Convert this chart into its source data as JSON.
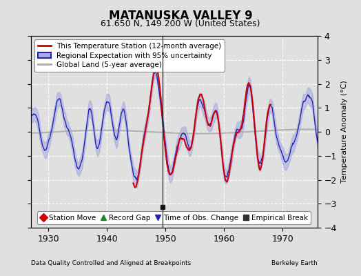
{
  "title": "MATANUSKA VALLEY 9",
  "subtitle": "61.650 N, 149.200 W (United States)",
  "xlabel_left": "Data Quality Controlled and Aligned at Breakpoints",
  "xlabel_right": "Berkeley Earth",
  "ylabel": "Temperature Anomaly (°C)",
  "xlim": [
    1927,
    1976
  ],
  "ylim": [
    -4,
    4
  ],
  "yticks": [
    -4,
    -3,
    -2,
    -1,
    0,
    1,
    2,
    3,
    4
  ],
  "xticks": [
    1930,
    1940,
    1950,
    1960,
    1970
  ],
  "bg_color": "#e0e0e0",
  "plot_bg_color": "#e0e0e0",
  "grid_color": "#ffffff",
  "regional_color": "#2222bb",
  "regional_fill_color": "#aaaadd",
  "station_color": "#cc0000",
  "global_color": "#aaaaaa",
  "empirical_break_x": 1949.5,
  "empirical_break_y": -3.15,
  "station_start1": 1944.5,
  "station_end1": 1950.5,
  "station_start2": 1950.5,
  "station_end2": 1968.0,
  "legend1_entries": [
    {
      "label": "This Temperature Station (12-month average)",
      "color": "#cc0000",
      "lw": 2
    },
    {
      "label": "Regional Expectation with 95% uncertainty",
      "color": "#2222bb",
      "lw": 2,
      "fill": "#aaaadd"
    },
    {
      "label": "Global Land (5-year average)",
      "color": "#aaaaaa",
      "lw": 2
    }
  ],
  "legend2_entries": [
    {
      "label": "Station Move",
      "marker": "D",
      "color": "#cc0000"
    },
    {
      "label": "Record Gap",
      "marker": "^",
      "color": "#228822"
    },
    {
      "label": "Time of Obs. Change",
      "marker": "v",
      "color": "#2222bb"
    },
    {
      "label": "Empirical Break",
      "marker": "s",
      "color": "#333333"
    }
  ],
  "title_fontsize": 12,
  "subtitle_fontsize": 9,
  "axis_fontsize": 8,
  "tick_fontsize": 9,
  "legend_fontsize": 7.5
}
